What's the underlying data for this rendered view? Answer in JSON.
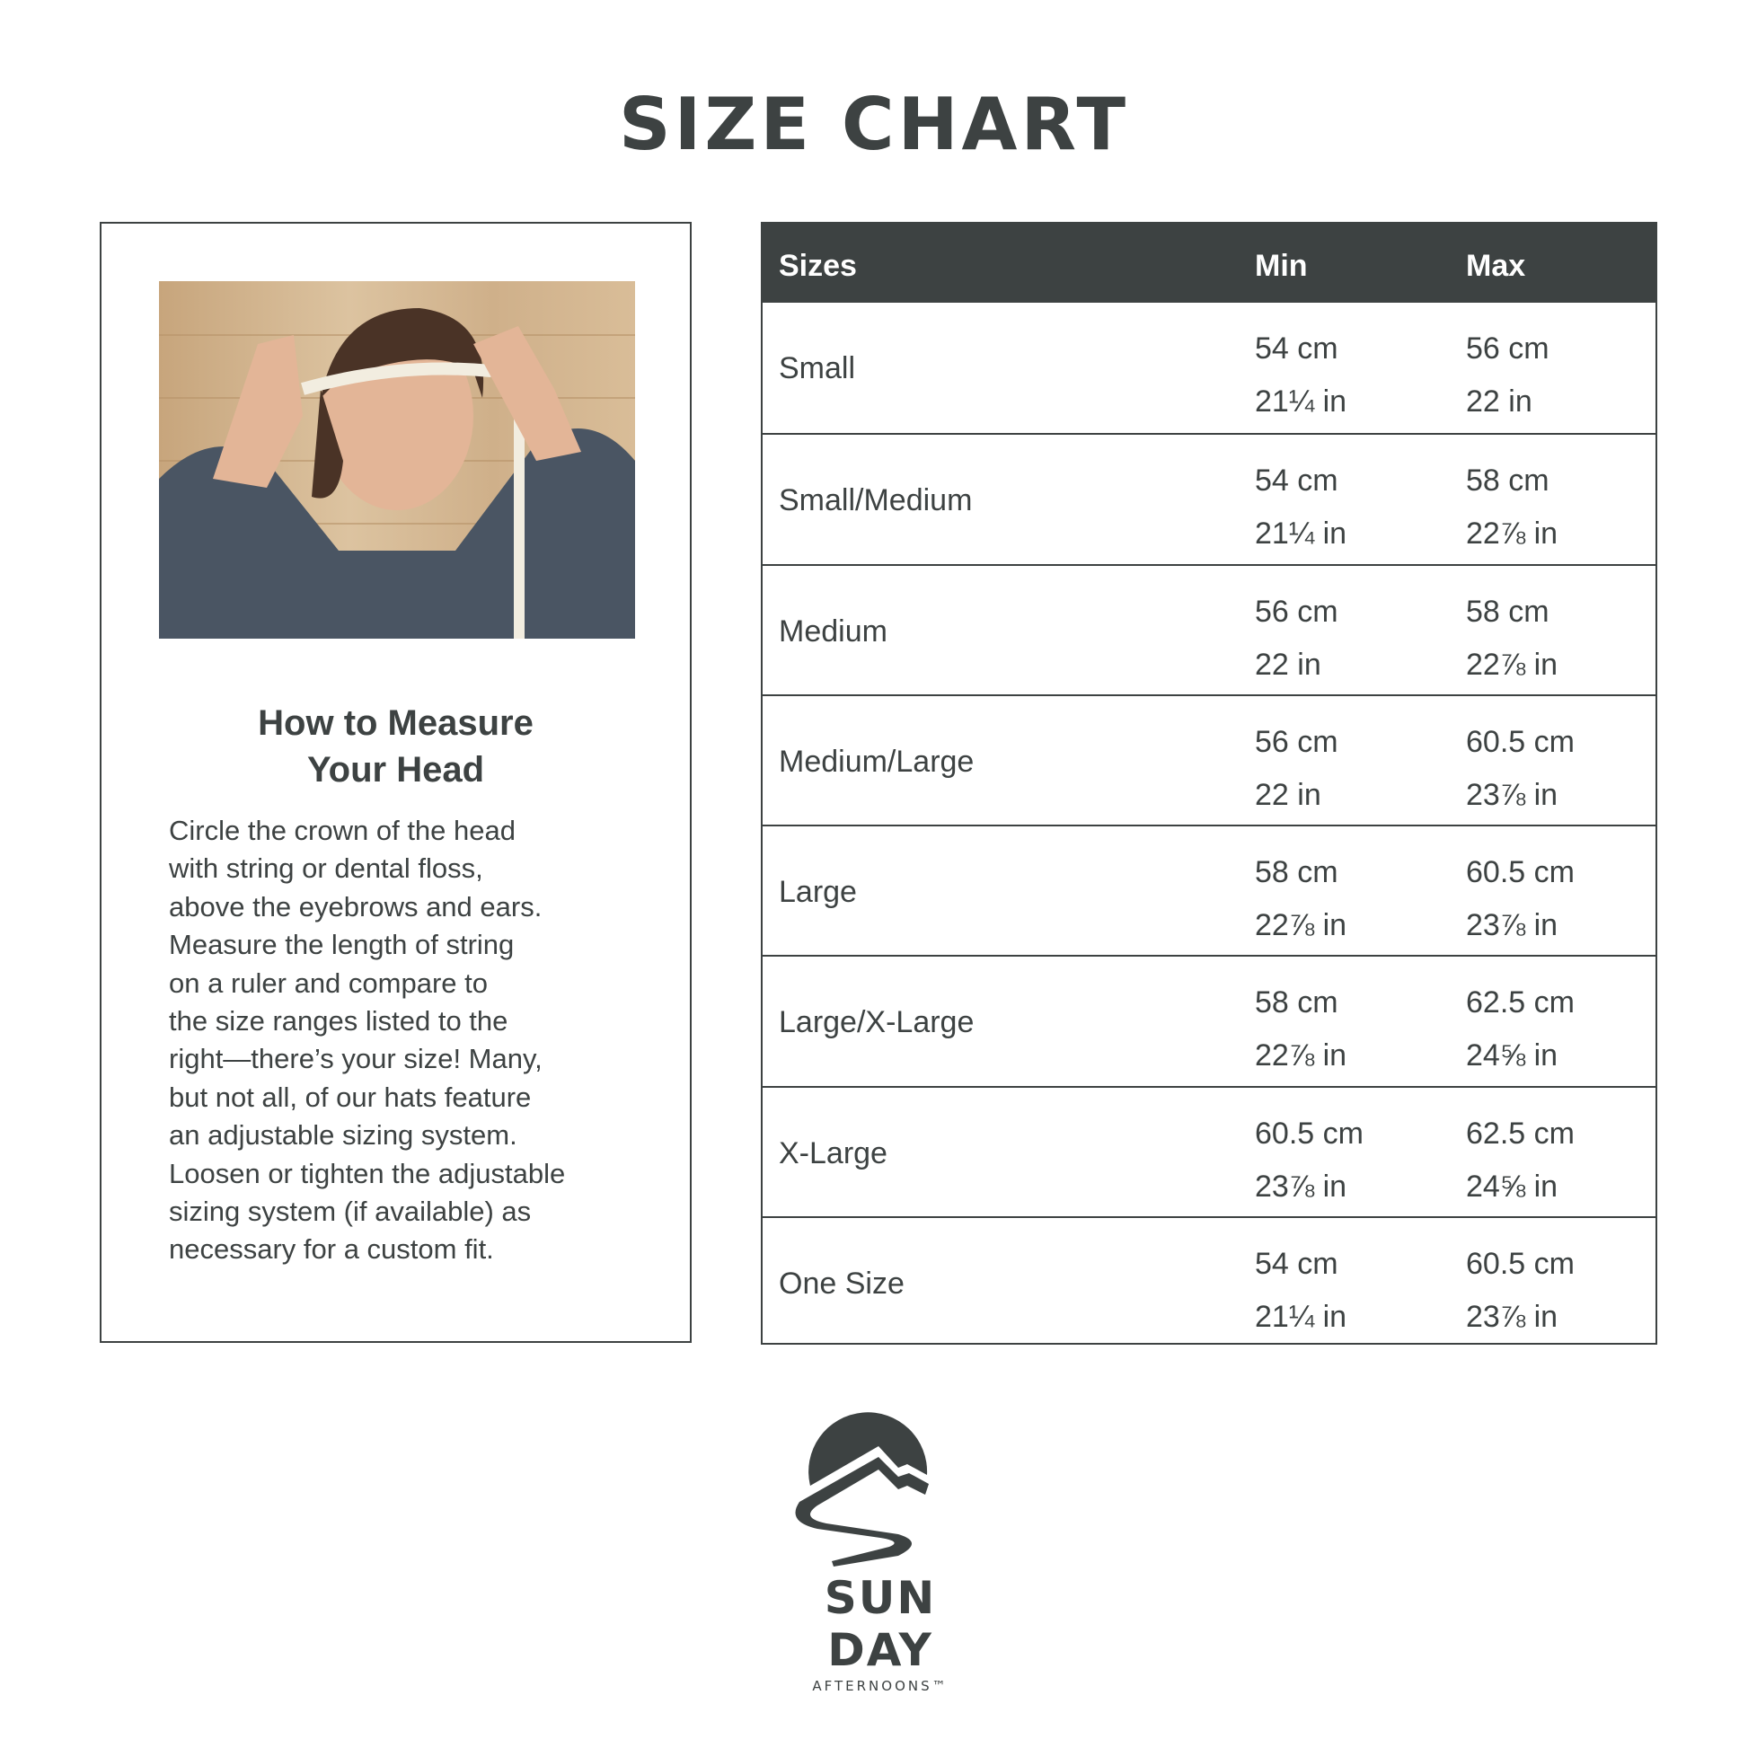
{
  "title": "SIZE CHART",
  "left_panel": {
    "heading_line1": "How to Measure",
    "heading_line2": "Your Head",
    "body_lines": [
      "Circle the crown of the head",
      "with string or dental floss,",
      "above the eyebrows and ears.",
      "Measure the length of string",
      "on a ruler and compare to",
      "the size ranges listed to the",
      "right—there’s your size! Many,",
      "but not all, of our hats feature",
      "an adjustable sizing system.",
      "Loosen or tighten the adjustable",
      "sizing system (if available) as",
      "necessary for a custom fit."
    ]
  },
  "table": {
    "headers": [
      "Sizes",
      "Min",
      "Max"
    ],
    "rows": [
      {
        "size": "Small",
        "min_cm": "54 cm",
        "min_in": "21¼ in",
        "max_cm": "56 cm",
        "max_in": "22 in"
      },
      {
        "size": "Small/Medium",
        "min_cm": "54 cm",
        "min_in": "21¼ in",
        "max_cm": "58 cm",
        "max_in": "22⅞ in"
      },
      {
        "size": "Medium",
        "min_cm": "56 cm",
        "min_in": "22 in",
        "max_cm": "58 cm",
        "max_in": "22⅞ in"
      },
      {
        "size": "Medium/Large",
        "min_cm": "56 cm",
        "min_in": "22 in",
        "max_cm": "60.5 cm",
        "max_in": "23⅞ in"
      },
      {
        "size": "Large",
        "min_cm": "58 cm",
        "min_in": "22⅞ in",
        "max_cm": "60.5 cm",
        "max_in": "23⅞ in"
      },
      {
        "size": "Large/X-Large",
        "min_cm": "58 cm",
        "min_in": "22⅞ in",
        "max_cm": "62.5 cm",
        "max_in": "24⅝ in"
      },
      {
        "size": "X-Large",
        "min_cm": "60.5 cm",
        "min_in": "23⅞ in",
        "max_cm": "62.5 cm",
        "max_in": "24⅝ in"
      },
      {
        "size": "One Size",
        "min_cm": "54 cm",
        "min_in": "21¼ in",
        "max_cm": "60.5 cm",
        "max_in": "23⅞ in"
      }
    ]
  },
  "logo": {
    "line1": "SUN",
    "line2": "DAY",
    "line3": "AFTERNOONS™"
  },
  "colors": {
    "primary": "#3d4242",
    "background": "#ffffff"
  }
}
